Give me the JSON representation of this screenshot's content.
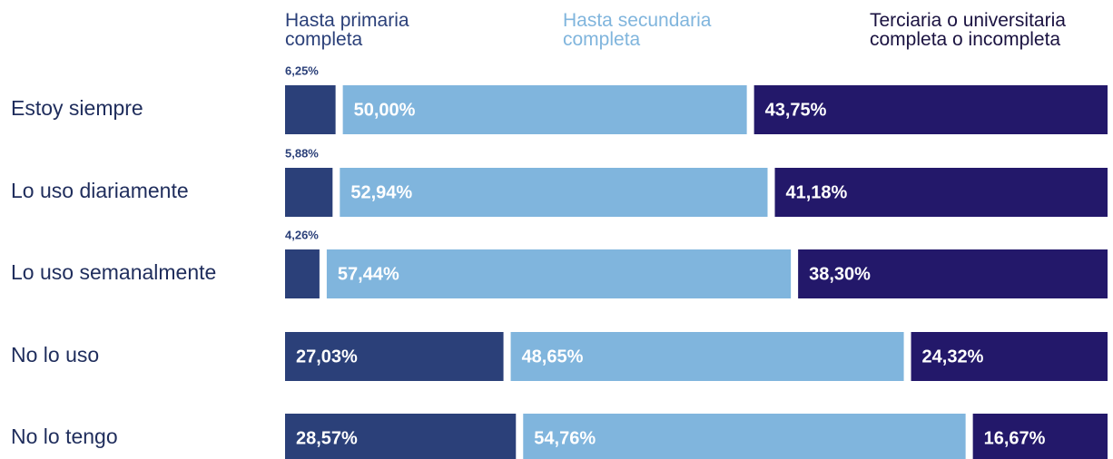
{
  "chart_data": {
    "type": "stacked_bar",
    "orientation": "horizontal",
    "categories": [
      "Estoy siempre",
      "Lo uso diariamente",
      "Lo uso semanalmente",
      "No lo uso",
      "No lo tengo"
    ],
    "series": [
      {
        "name": "Hasta primaria completa",
        "color": "#2b4079",
        "values": [
          6.25,
          5.88,
          4.26,
          27.03,
          28.57
        ],
        "value_labels": [
          "6,25%",
          "5,88%",
          "4,26%",
          "27,03%",
          "28,57%"
        ]
      },
      {
        "name": "Hasta secundaria completa",
        "color": "#80b5dd",
        "values": [
          50.0,
          52.94,
          57.44,
          48.65,
          54.76
        ],
        "value_labels": [
          "50,00%",
          "52,94%",
          "57,44%",
          "48,65%",
          "54,76%"
        ]
      },
      {
        "name": "Terciaria o universitaria completa o incompleta",
        "color": "#23186a",
        "values": [
          43.75,
          41.18,
          38.3,
          24.32,
          16.67
        ],
        "value_labels": [
          "43,75%",
          "41,18%",
          "38,30%",
          "24,32%",
          "16,67%"
        ]
      }
    ]
  }
}
